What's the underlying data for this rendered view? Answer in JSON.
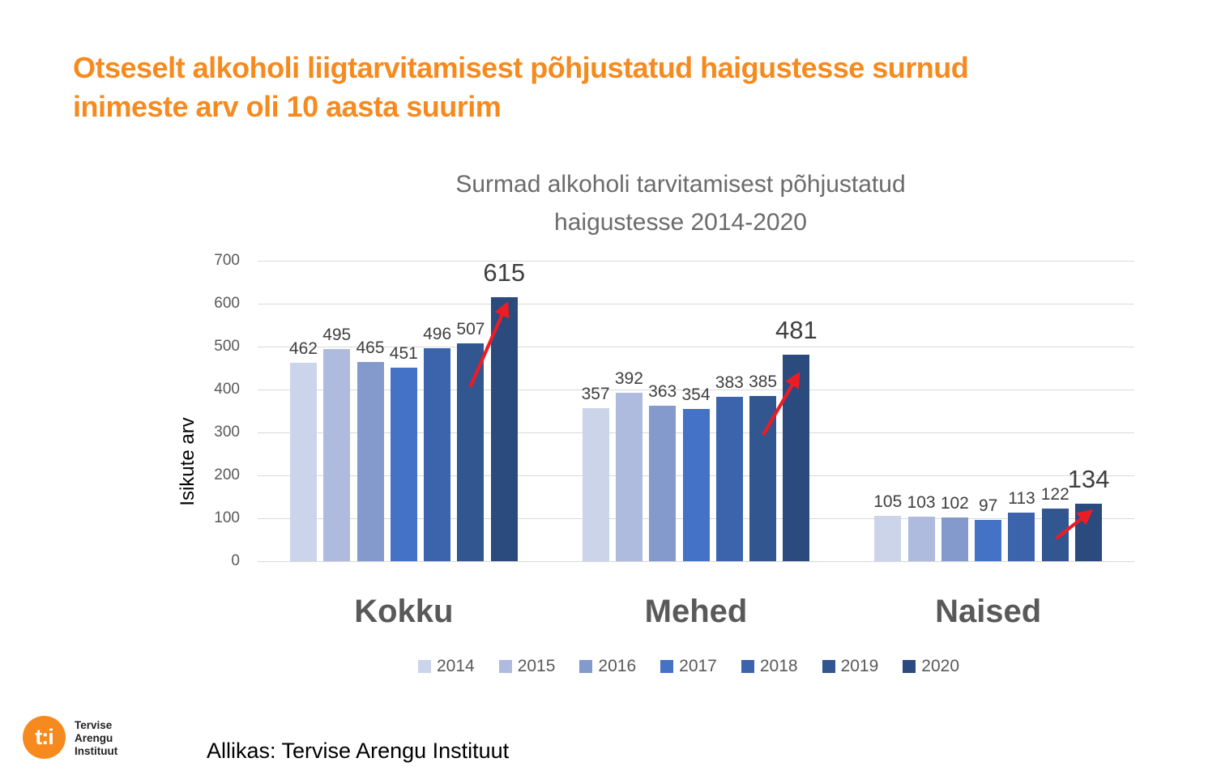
{
  "slide": {
    "title": "Otseselt alkoholi liigtarvitamisest põhjustatud haigustesse surnud inimeste arv oli 10 aasta suurim",
    "title_lines": [
      "Otseselt alkoholi liigtarvitamisest põhjustatud haigustesse surnud",
      "inimeste arv oli 10 aasta suurim"
    ],
    "title_color": "#f68a1e",
    "source_note": "Allikas: Tervise Arengu Instituut",
    "logo": {
      "mark": "t:i",
      "lines": [
        "Tervise",
        "Arengu",
        "Instituut"
      ],
      "color": "#f68a1e"
    }
  },
  "chart_data": {
    "type": "bar",
    "title": "Surmad alkoholi tarvitamisest põhjustatud haigustesse 2014-2020",
    "title_lines": [
      "Surmad alkoholi tarvitamisest põhjustatud",
      "haigustesse 2014-2020"
    ],
    "xlabel": "",
    "ylabel": "Isikute arv",
    "ylim": [
      0,
      700
    ],
    "yticks": [
      0,
      100,
      200,
      300,
      400,
      500,
      600,
      700
    ],
    "grid": true,
    "legend_position": "bottom",
    "categories": [
      "Kokku",
      "Mehed",
      "Naised"
    ],
    "series": [
      {
        "name": "2014",
        "color": "#ccd4e9",
        "values": [
          462,
          357,
          105
        ]
      },
      {
        "name": "2015",
        "color": "#aebbde",
        "values": [
          495,
          392,
          103
        ]
      },
      {
        "name": "2016",
        "color": "#8499cc",
        "values": [
          465,
          363,
          102
        ]
      },
      {
        "name": "2017",
        "color": "#4472c4",
        "values": [
          451,
          354,
          97
        ]
      },
      {
        "name": "2018",
        "color": "#3c64ac",
        "values": [
          496,
          383,
          113
        ]
      },
      {
        "name": "2019",
        "color": "#32568f",
        "values": [
          507,
          385,
          122
        ]
      },
      {
        "name": "2020",
        "color": "#2b4a7d",
        "values": [
          615,
          481,
          134
        ],
        "emphasis": true
      }
    ],
    "annotations": [
      {
        "type": "arrow",
        "color": "#ed1c24",
        "target_category": "Kokku",
        "target_series": "2020"
      },
      {
        "type": "arrow",
        "color": "#ed1c24",
        "target_category": "Mehed",
        "target_series": "2020"
      },
      {
        "type": "arrow",
        "color": "#ed1c24",
        "target_category": "Naised",
        "target_series": "2020"
      }
    ]
  }
}
